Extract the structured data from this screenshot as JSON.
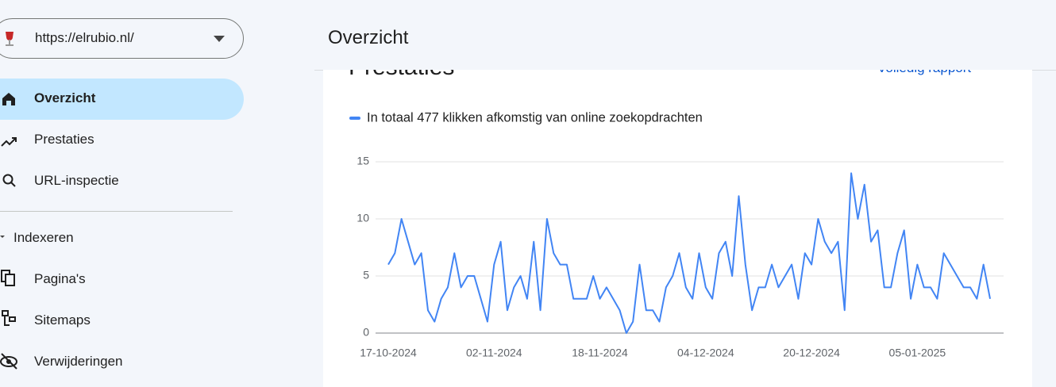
{
  "property": "https://elrubio.nl/",
  "header": {
    "title": "Overzicht"
  },
  "nav": {
    "items": [
      "Overzicht",
      "Prestaties",
      "URL-inspectie"
    ],
    "section": "Indexeren",
    "section_items": [
      "Pagina's",
      "Sitemaps",
      "Verwijderingen"
    ]
  },
  "card": {
    "title": "Prestaties",
    "link": "Volledig rapport"
  },
  "chart_data": {
    "type": "line",
    "categories": [
      "17-10-2024",
      null,
      null,
      null,
      null,
      null,
      null,
      null,
      null,
      null,
      null,
      null,
      null,
      null,
      null,
      null,
      "02-11-2024",
      null,
      null,
      null,
      null,
      null,
      null,
      null,
      null,
      null,
      null,
      null,
      null,
      null,
      null,
      null,
      "18-11-2024",
      null,
      null,
      null,
      null,
      null,
      null,
      null,
      null,
      null,
      null,
      null,
      null,
      null,
      null,
      null,
      "04-12-2024",
      null,
      null,
      null,
      null,
      null,
      null,
      null,
      null,
      null,
      null,
      null,
      null,
      null,
      null,
      null,
      "20-12-2024",
      null,
      null,
      null,
      null,
      null,
      null,
      null,
      null,
      null,
      null,
      null,
      null,
      null,
      null,
      null,
      "05-01-2025",
      null,
      null,
      null,
      null,
      null,
      null,
      null,
      null,
      null,
      null,
      null
    ],
    "series": [
      {
        "name": "In totaal 477 klikken afkomstig van online zoekopdrachten",
        "color": "#4285f4",
        "values": [
          6,
          7,
          10,
          8,
          6,
          7,
          2,
          1,
          3,
          4,
          7,
          4,
          5,
          5,
          3,
          1,
          6,
          8,
          2,
          4,
          5,
          3,
          8,
          2,
          10,
          7,
          6,
          6,
          3,
          3,
          3,
          5,
          3,
          4,
          3,
          2,
          0,
          1,
          6,
          2,
          2,
          1,
          4,
          5,
          7,
          4,
          3,
          7,
          4,
          3,
          7,
          8,
          5,
          12,
          6,
          2,
          4,
          4,
          6,
          4,
          5,
          6,
          3,
          7,
          6,
          10,
          8,
          7,
          8,
          2,
          14,
          10,
          13,
          8,
          9,
          4,
          4,
          7,
          9,
          3,
          6,
          4,
          4,
          3,
          7,
          6,
          5,
          4,
          4,
          3,
          6,
          3
        ]
      }
    ],
    "ylim": [
      0,
      15
    ],
    "yticks": [
      0,
      5,
      10,
      15
    ],
    "grid": true
  }
}
